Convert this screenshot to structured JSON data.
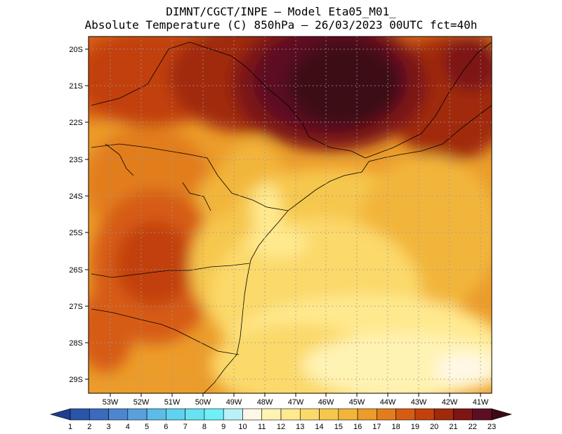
{
  "header": {
    "line1": "DIMNT/CGCT/INPE —  Model Eta05_M01_",
    "line2": "Absolute Temperature (C) 850hPa —  26/03/2023 00UTC fct=40h"
  },
  "map": {
    "lat_labels": [
      "20S",
      "21S",
      "22S",
      "23S",
      "24S",
      "25S",
      "26S",
      "27S",
      "28S",
      "29S"
    ],
    "lon_labels": [
      "53W",
      "52W",
      "51W",
      "50W",
      "49W",
      "48W",
      "47W",
      "46W",
      "45W",
      "44W",
      "43W",
      "42W",
      "41W"
    ],
    "lat_range": [
      -29.6,
      -19.9
    ],
    "lon_range": [
      -53.9,
      -40.3
    ]
  },
  "colorbar": {
    "labels": [
      "1",
      "2",
      "3",
      "4",
      "5",
      "6",
      "7",
      "8",
      "9",
      "10",
      "11",
      "12",
      "13",
      "14",
      "15",
      "16",
      "17",
      "18",
      "19",
      "20",
      "21",
      "22",
      "23"
    ],
    "colors": [
      "#1f3d8f",
      "#2a55a8",
      "#3a6bbd",
      "#4c86cf",
      "#5aa0dc",
      "#5dbbe8",
      "#5ed2ef",
      "#66e2f3",
      "#6ff0f8",
      "#b8f2f8",
      "#fff8e6",
      "#fff3b3",
      "#ffe98f",
      "#fbd96b",
      "#f6c74d",
      "#f2b53a",
      "#ec9c2a",
      "#e27d1e",
      "#d65c14",
      "#c2410d",
      "#a12a0a",
      "#7e1512",
      "#5c0f22",
      "#3d0a14"
    ]
  },
  "colors": {
    "grid": "#9a9a9a",
    "border": "#000000"
  }
}
